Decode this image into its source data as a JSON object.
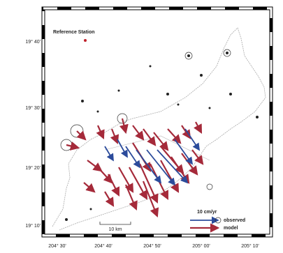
{
  "map": {
    "reference_label": "Reference Station",
    "lat_ticks": [
      "19° 40'",
      "19° 30'",
      "19° 20'",
      "19° 10'"
    ],
    "lon_ticks": [
      "204° 30'",
      "204° 40'",
      "204° 50'",
      "205° 00'",
      "205° 10'"
    ],
    "scale_bar": "10 km",
    "legend": {
      "scale": "10 cm/yr",
      "observed": "observed",
      "model": "model"
    }
  }
}
